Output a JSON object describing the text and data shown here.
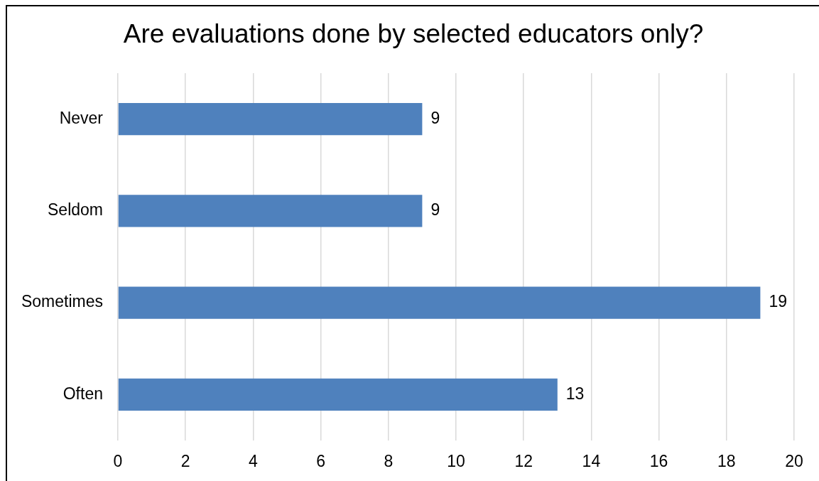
{
  "chart_data": {
    "type": "bar",
    "orientation": "horizontal",
    "title": "Are evaluations done by selected educators only?",
    "categories": [
      "Never",
      "Seldom",
      "Sometimes",
      "Often"
    ],
    "values": [
      9,
      9,
      19,
      13
    ],
    "color": "#4f81bd",
    "xlim": [
      0,
      20
    ],
    "xticks": [
      0,
      2,
      4,
      6,
      8,
      10,
      12,
      14,
      16,
      18,
      20
    ],
    "grid": "x",
    "data_labels": true
  }
}
